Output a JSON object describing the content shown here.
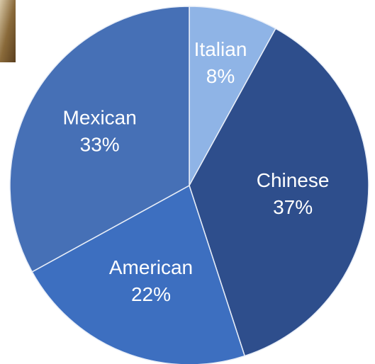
{
  "chart_data": {
    "type": "pie",
    "categories": [
      "Italian",
      "Chinese",
      "American",
      "Mexican"
    ],
    "values": [
      8,
      37,
      22,
      33
    ],
    "value_labels": [
      "8%",
      "37%",
      "22%",
      "33%"
    ],
    "colors": [
      "#8fb4e6",
      "#2e4e8c",
      "#3d6fc0",
      "#4670b6"
    ]
  }
}
